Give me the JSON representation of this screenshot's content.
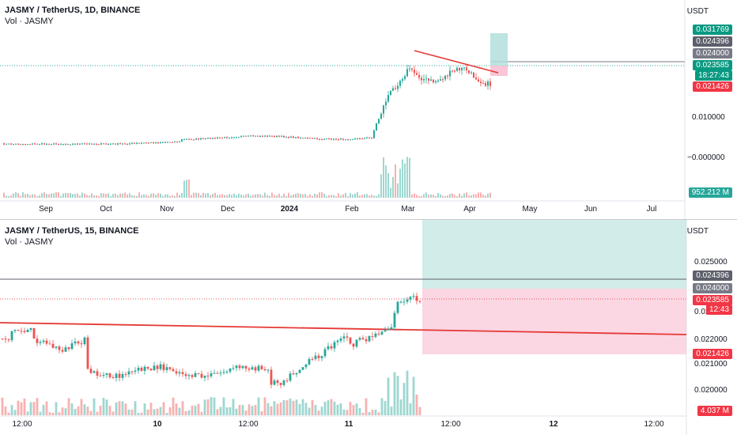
{
  "colors": {
    "up": "#26a69a",
    "down": "#ef5350",
    "tp_zone": "#b2dfdb",
    "sl_zone": "#f8bbd0",
    "trend": "#e53935",
    "line_gray": "#787b86",
    "dark_badge": "#5d606b",
    "green_badge": "#089981",
    "red_badge": "#f23645"
  },
  "top": {
    "legend_title": "JASMY / TetherUS, 1D, BINANCE",
    "legend_vol": "Vol · JASMY",
    "currency": "USDT",
    "y_ticks": [
      "0.010000",
      "−0.000000"
    ],
    "x_ticks": [
      {
        "label": "Sep",
        "bold": false
      },
      {
        "label": "Oct",
        "bold": false
      },
      {
        "label": "Nov",
        "bold": false
      },
      {
        "label": "Dec",
        "bold": false
      },
      {
        "label": "2024",
        "bold": true
      },
      {
        "label": "Feb",
        "bold": false
      },
      {
        "label": "Mar",
        "bold": false
      },
      {
        "label": "Apr",
        "bold": false
      },
      {
        "label": "May",
        "bold": false
      },
      {
        "label": "Jun",
        "bold": false
      },
      {
        "label": "Jul",
        "bold": false
      }
    ],
    "badges": {
      "tp": "0.031769",
      "level_a": "0.024396",
      "level_b": "0.024000",
      "last_price": "0.023585",
      "countdown": "18:27:43",
      "sl": "0.021426",
      "volume": "952.212 M"
    }
  },
  "bottom": {
    "legend_title": "JASMY / TetherUS, 15, BINANCE",
    "legend_vol": "Vol · JASMY",
    "currency": "USDT",
    "y_ticks": [
      "0.025000",
      "0.023000",
      "0.022000",
      "0.021000",
      "0.020000"
    ],
    "x_ticks": [
      {
        "label": "12:00",
        "bold": false
      },
      {
        "label": "10",
        "bold": true
      },
      {
        "label": "12:00",
        "bold": false
      },
      {
        "label": "11",
        "bold": true
      },
      {
        "label": "12:00",
        "bold": false
      },
      {
        "label": "12",
        "bold": true
      },
      {
        "label": "12:00",
        "bold": false
      }
    ],
    "badges": {
      "level_a": "0.024396",
      "level_b": "0.024000",
      "last_price": "0.023585",
      "countdown": "12:43",
      "sl": "0.021426",
      "volume": "4.037 M"
    }
  }
}
